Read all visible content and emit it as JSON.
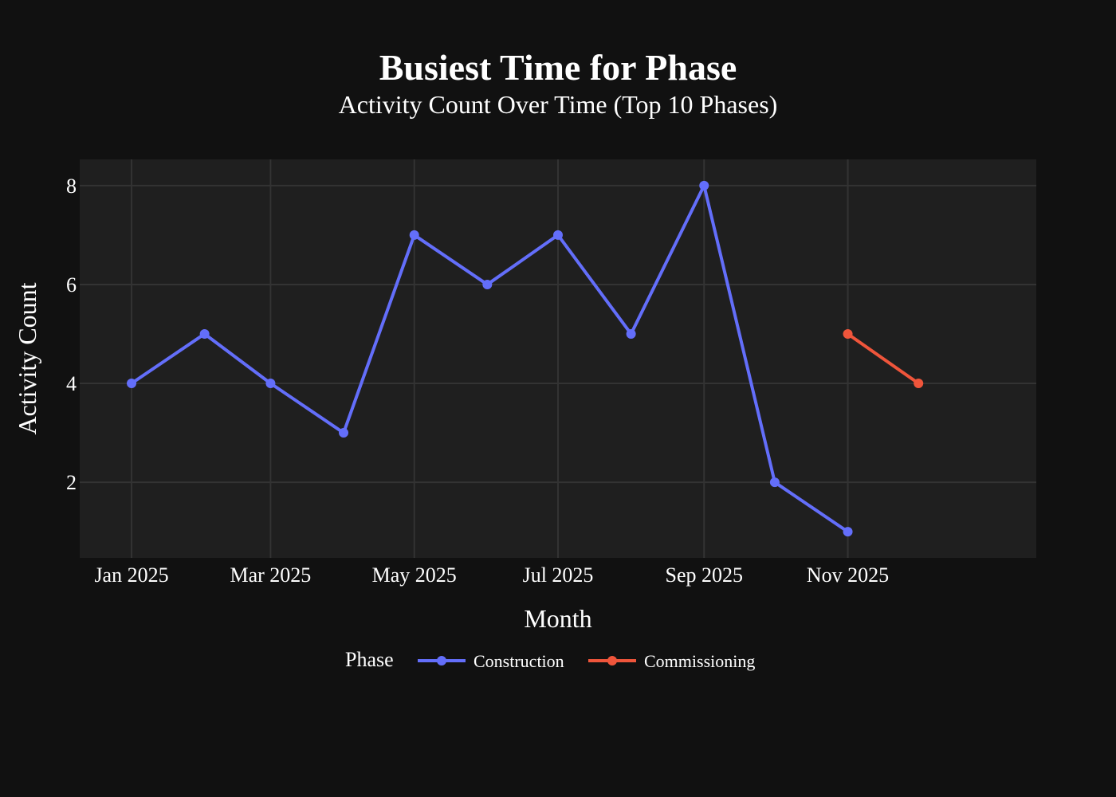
{
  "chart_data": {
    "type": "line",
    "title": "Busiest Time for Phase",
    "subtitle": "Activity Count Over Time (Top 10 Phases)",
    "xlabel": "Month",
    "ylabel": "Activity Count",
    "x_ticks": [
      "Jan 2025",
      "Mar 2025",
      "May 2025",
      "Jul 2025",
      "Sep 2025",
      "Nov 2025"
    ],
    "y_ticks": [
      2,
      4,
      6,
      8
    ],
    "ylim": [
      0.47,
      8.53
    ],
    "xlim": [
      "2024-12-10",
      "2026-01-20"
    ],
    "grid": true,
    "legend": {
      "title": "Phase",
      "placement": "bottom-center"
    },
    "series": [
      {
        "name": "Construction",
        "color": "#636efa",
        "x": [
          "2025-01-01",
          "2025-02-01",
          "2025-03-01",
          "2025-04-01",
          "2025-05-01",
          "2025-06-01",
          "2025-07-01",
          "2025-08-01",
          "2025-09-01",
          "2025-10-01",
          "2025-11-01"
        ],
        "y": [
          4,
          5,
          4,
          3,
          7,
          6,
          7,
          5,
          8,
          2,
          1
        ]
      },
      {
        "name": "Commissioning",
        "color": "#ef553b",
        "x": [
          "2025-11-01",
          "2025-12-01"
        ],
        "y": [
          5,
          4
        ]
      }
    ]
  },
  "colors": {
    "background": "#111111",
    "plot_background": "#1f1f1f",
    "grid": "#333333"
  }
}
